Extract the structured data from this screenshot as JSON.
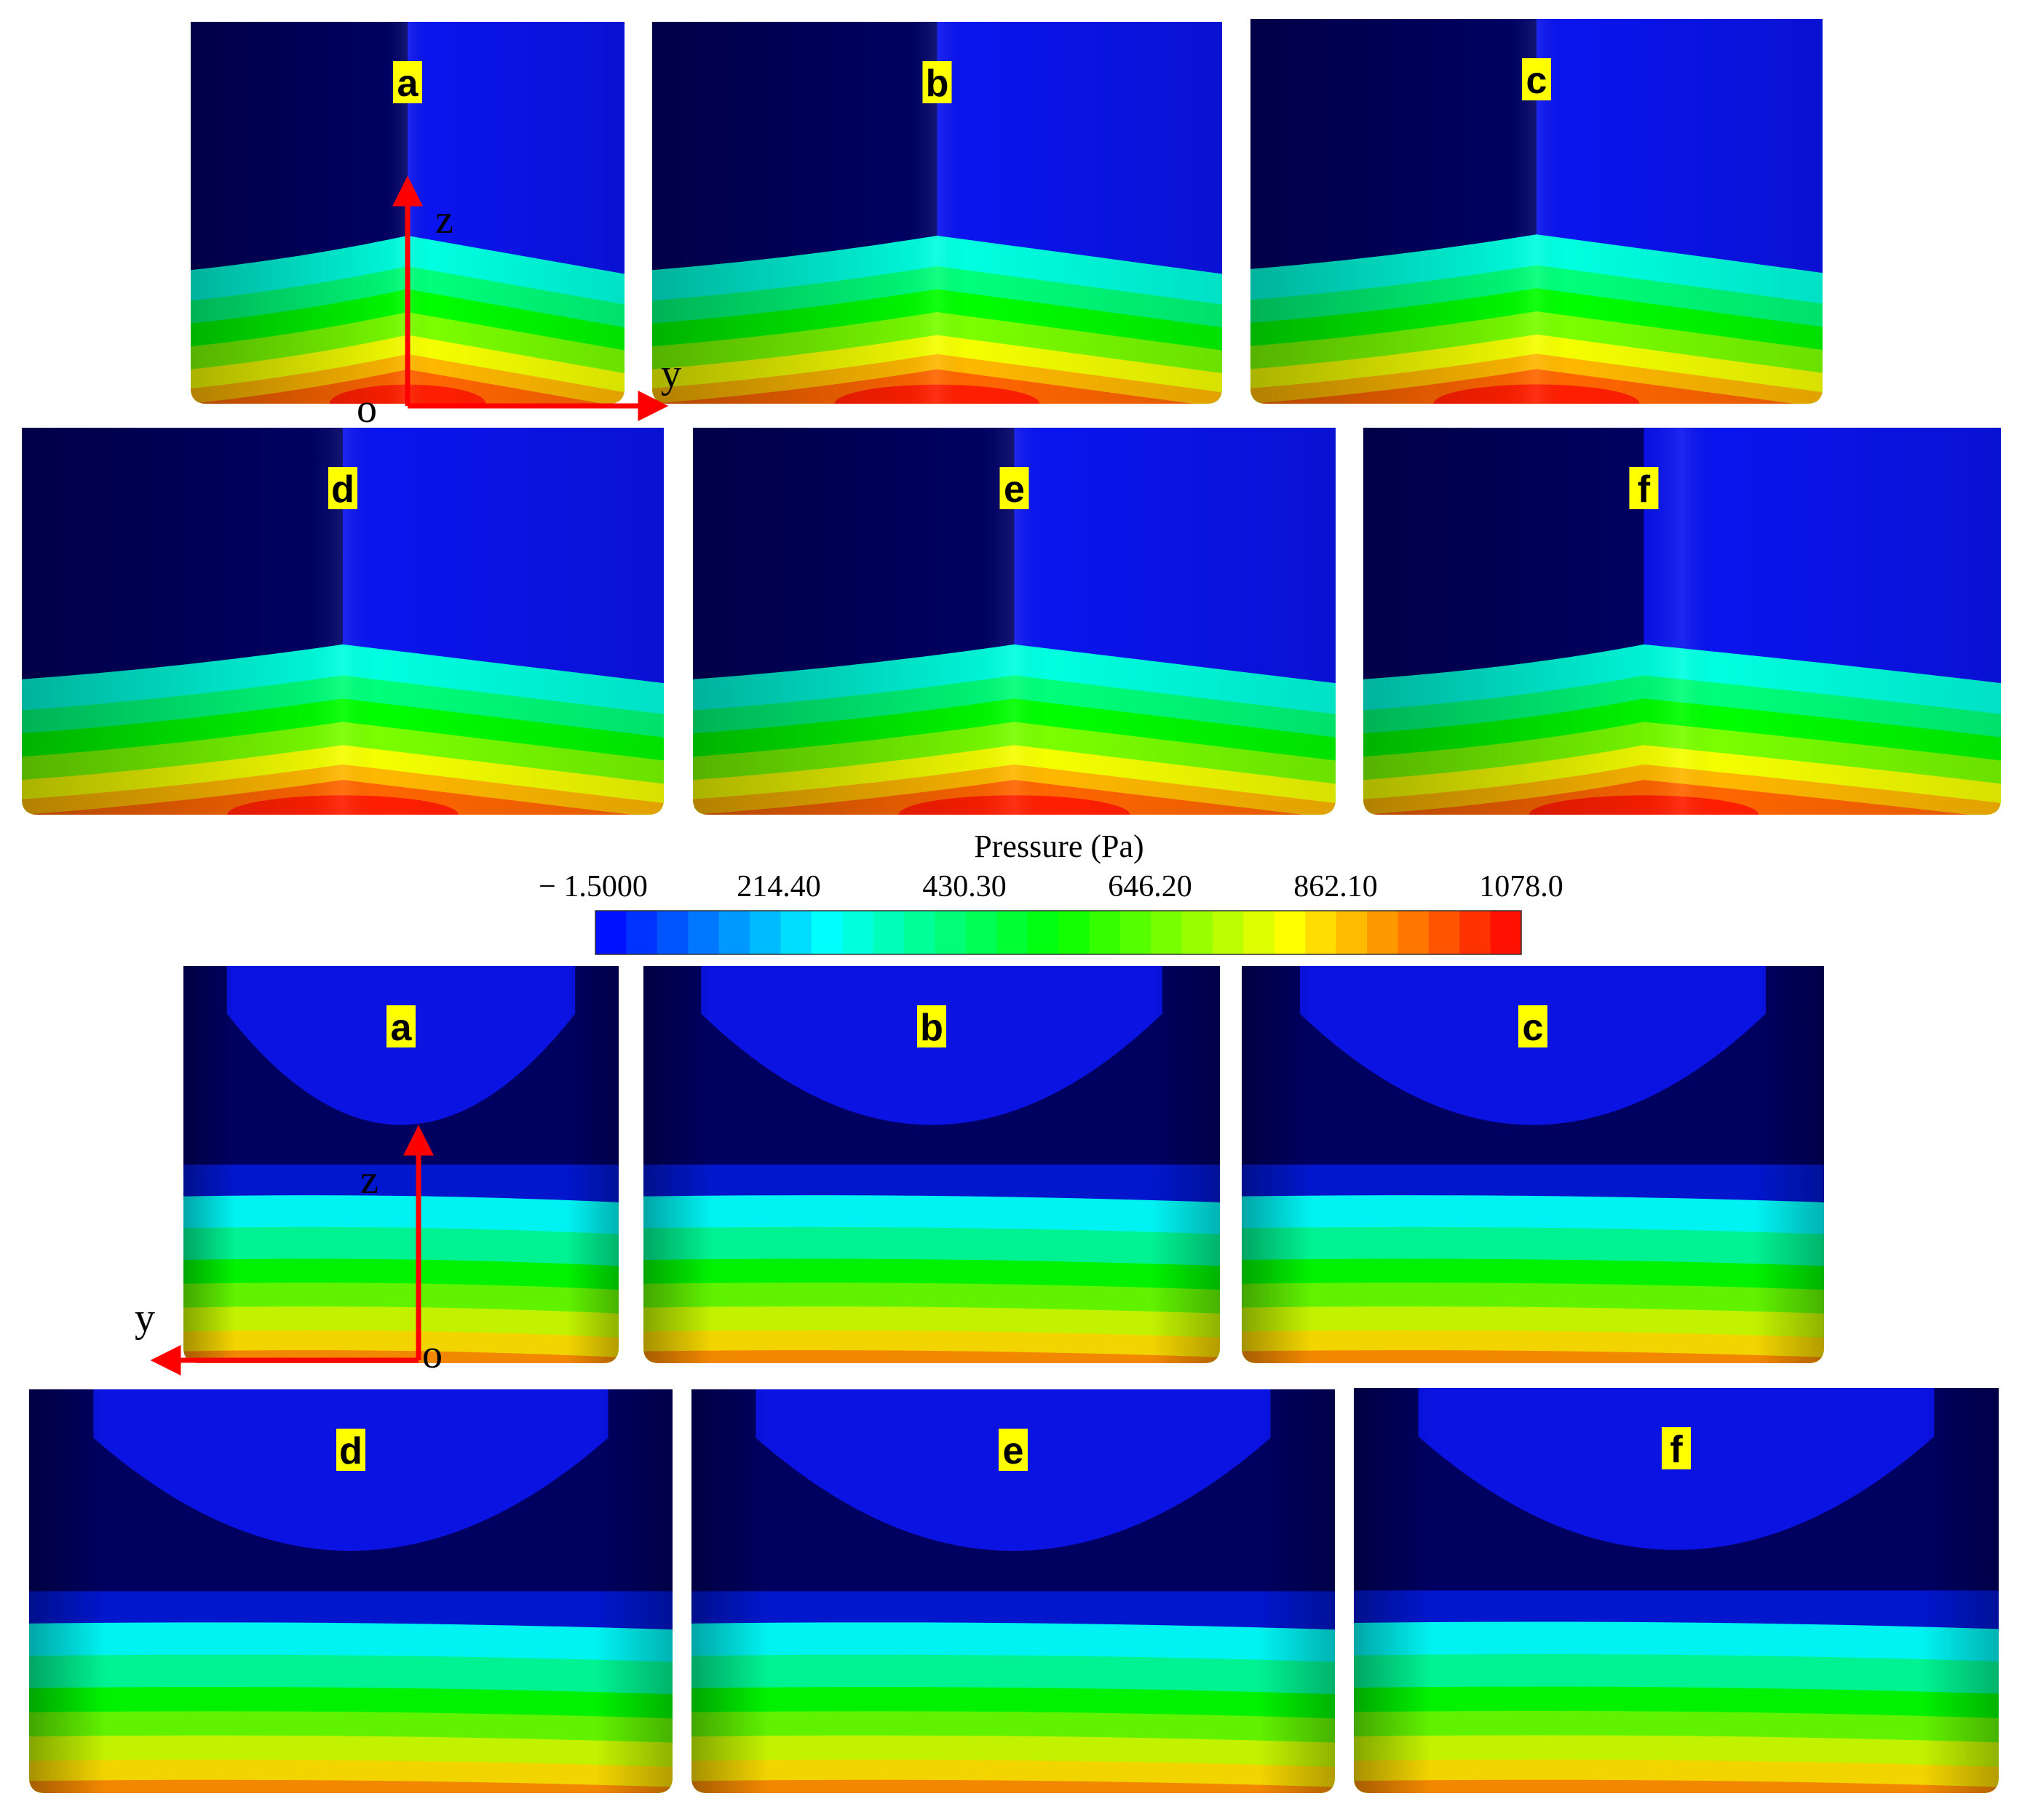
{
  "top_panels": [
    {
      "label": "a"
    },
    {
      "label": "b"
    },
    {
      "label": "c"
    },
    {
      "label": "d"
    },
    {
      "label": "e"
    },
    {
      "label": "f"
    }
  ],
  "bottom_panels": [
    {
      "label": "a"
    },
    {
      "label": "b"
    },
    {
      "label": "c"
    },
    {
      "label": "d"
    },
    {
      "label": "e"
    },
    {
      "label": "f"
    }
  ],
  "axes_top": {
    "z": "z",
    "y": "y",
    "origin": "o"
  },
  "axes_bottom": {
    "z": "z",
    "y": "y",
    "origin": "o"
  },
  "colorbar": {
    "title": "Pressure (Pa)",
    "ticks": [
      "− 1.5000",
      "214.40",
      "430.30",
      "646.20",
      "862.10",
      "1078.0"
    ],
    "min": -1.5,
    "max": 1078.0,
    "levels": 30,
    "colors": [
      "#0000ff",
      "#00ffff",
      "#00ff00",
      "#ffff00",
      "#ff0000"
    ]
  },
  "colors": {
    "axis_arrow": "#ff0000",
    "label_background": "#ffff00",
    "contour_deep": "#000066",
    "contour_blue": "#0a14ee"
  }
}
